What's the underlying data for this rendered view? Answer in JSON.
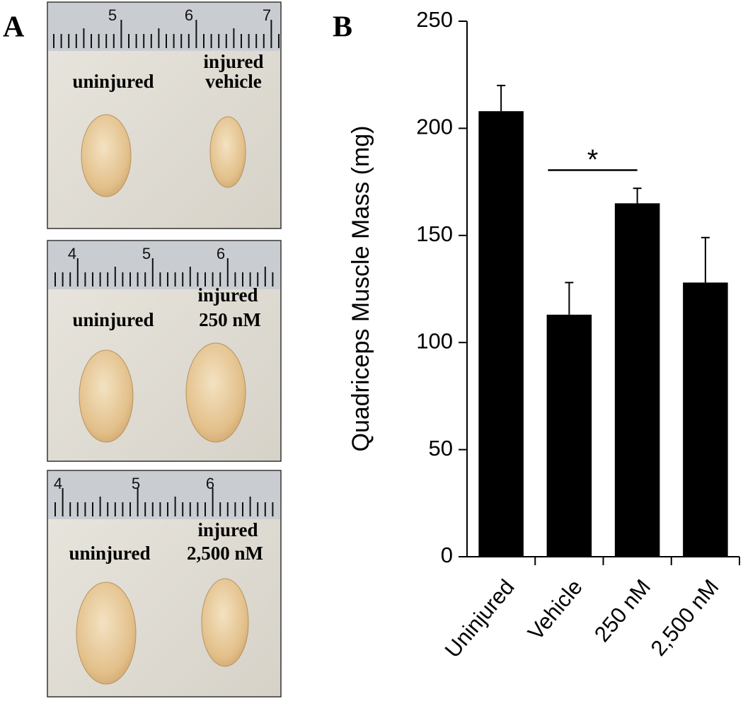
{
  "panel_a": {
    "label": "A",
    "photos": [
      {
        "ruler": [
          "5",
          "6",
          "7"
        ],
        "left": "uninjured",
        "right": [
          "injured",
          "vehicle"
        ]
      },
      {
        "ruler": [
          "4",
          "5",
          "6"
        ],
        "left": "uninjured",
        "right": [
          "injured",
          "250 nM"
        ]
      },
      {
        "ruler": [
          "4",
          "5",
          "6"
        ],
        "left": "uninjured",
        "right": [
          "injured",
          "2,500 nM"
        ]
      }
    ]
  },
  "chart_data": {
    "type": "bar",
    "panel_label": "B",
    "y_label": "Quadriceps Muscle Mass (mg)",
    "categories": [
      "Uninjured",
      "Vehicle",
      "250 nM",
      "2,500 nM"
    ],
    "values": [
      208,
      113,
      165,
      128
    ],
    "errors": [
      12,
      15,
      7,
      21
    ],
    "color": "#000000",
    "ylim": [
      0,
      250
    ],
    "yticks": [
      0,
      50,
      100,
      150,
      200,
      250
    ],
    "annotation": "*"
  }
}
